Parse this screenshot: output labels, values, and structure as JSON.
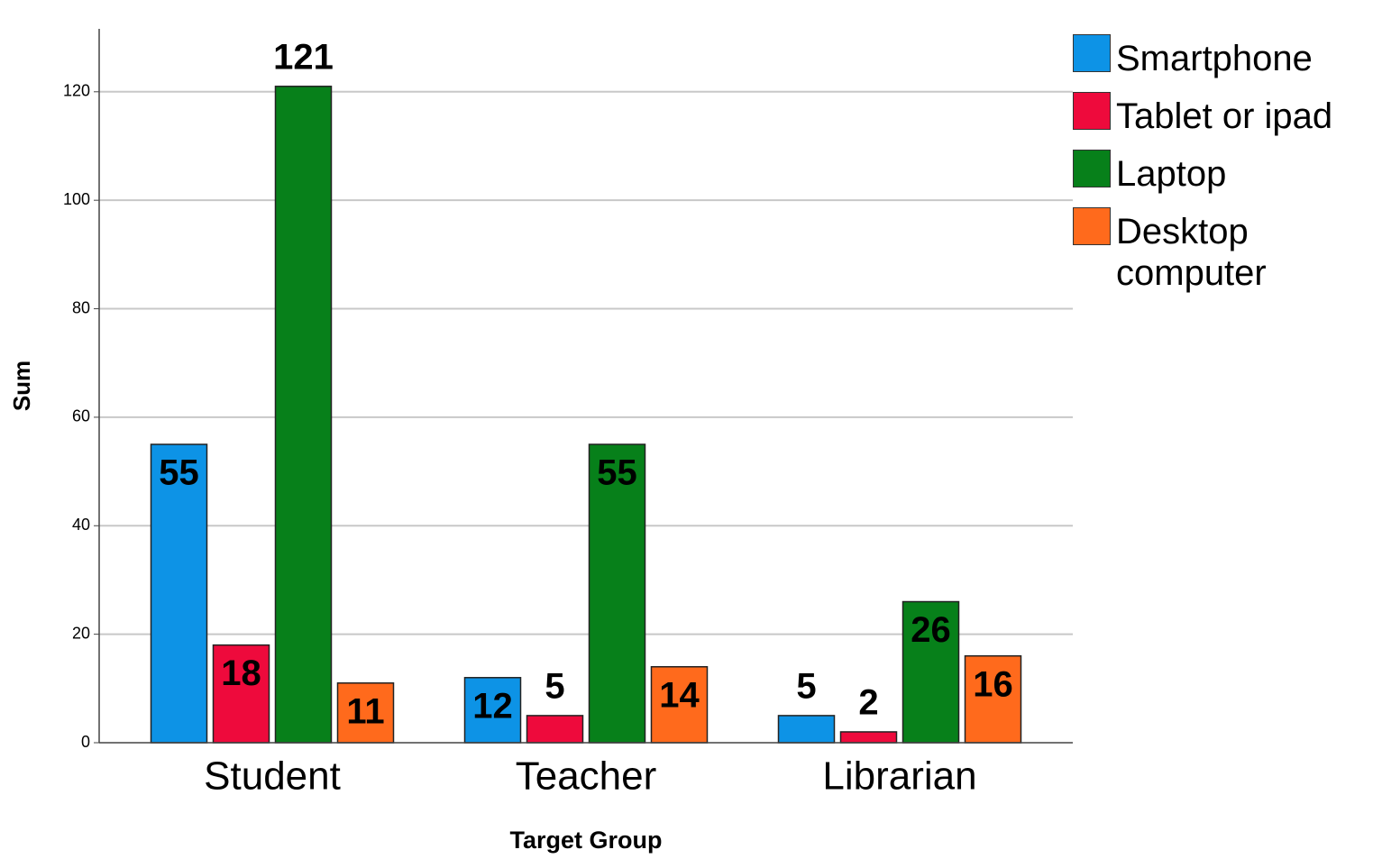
{
  "chart_data": {
    "type": "bar",
    "x_label": "Target Group",
    "y_label": "Sum",
    "categories": [
      "Student",
      "Teacher",
      "Librarian"
    ],
    "series": [
      {
        "name": "Smartphone",
        "color": "#0d93e6",
        "values": [
          55,
          12,
          5
        ]
      },
      {
        "name": "Tablet or ipad",
        "color": "#ee0a3c",
        "values": [
          18,
          5,
          2
        ]
      },
      {
        "name": "Laptop",
        "color": "#07801a",
        "values": [
          121,
          55,
          26
        ]
      },
      {
        "name": "Desktop computer",
        "color": "#ff6a1c",
        "values": [
          11,
          14,
          16
        ]
      }
    ],
    "ylim": [
      0,
      131.6
    ],
    "yticks": [
      0,
      20,
      40,
      60,
      80,
      100,
      120
    ],
    "grid": true,
    "legend": "right"
  }
}
